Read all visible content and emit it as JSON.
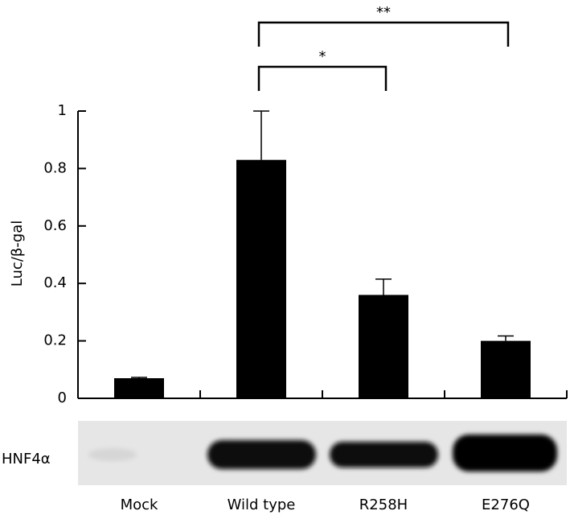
{
  "chart_data": {
    "type": "bar",
    "y_label": "Luc/β-gal",
    "categories": [
      "Mock",
      "Wild type",
      "R258H",
      "E276Q"
    ],
    "values": [
      0.07,
      0.83,
      0.36,
      0.2
    ],
    "errors": [
      0.003,
      0.17,
      0.055,
      0.017
    ],
    "color": "#000000",
    "ylim": [
      0,
      1
    ],
    "yticks": [
      0,
      0.2,
      0.4,
      0.6,
      0.8,
      1
    ],
    "significance": [
      {
        "pair": [
          "Wild type",
          "R258H"
        ],
        "label": "*"
      },
      {
        "pair": [
          "Wild type",
          "E276Q"
        ],
        "label": "**"
      }
    ],
    "blot_label": "HNF4α"
  }
}
